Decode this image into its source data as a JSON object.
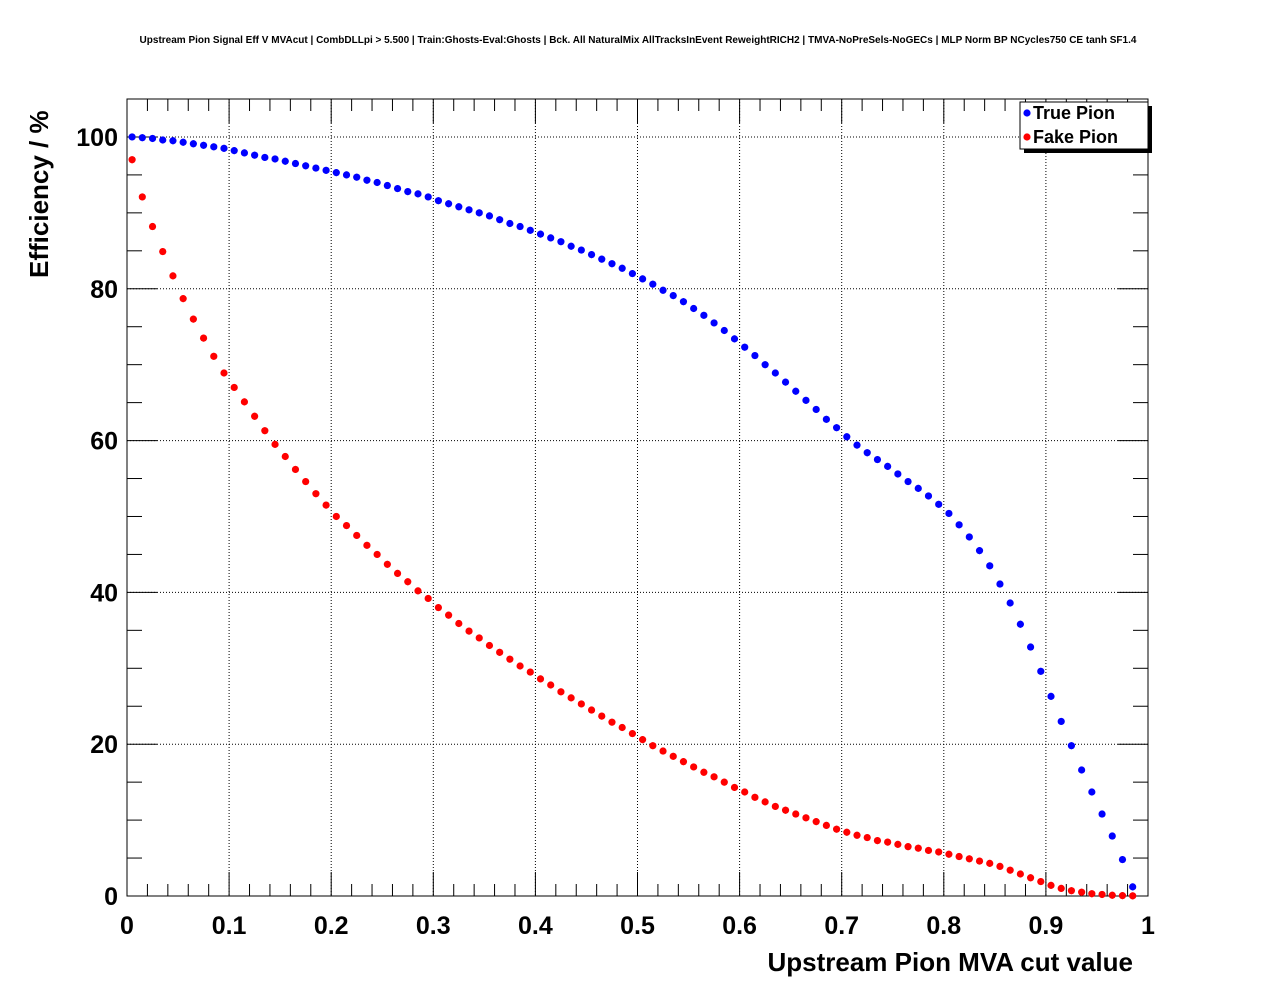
{
  "chart_data": {
    "type": "scatter",
    "title": "Upstream Pion Signal Eff V MVAcut | CombDLLpi > 5.500 | Train:Ghosts-Eval:Ghosts | Bck. All NaturalMix AllTracksInEvent ReweightRICH2 | TMVA-NoPreSels-NoGECs | MLP Norm BP NCycles750 CE tanh SF1.4",
    "xlabel": "Upstream Pion MVA cut value",
    "ylabel": "Efficiency / %",
    "xlim": [
      0,
      1
    ],
    "ylim": [
      0,
      105
    ],
    "xticks": [
      0,
      0.1,
      0.2,
      0.3,
      0.4,
      0.5,
      0.6,
      0.7,
      0.8,
      0.9,
      1
    ],
    "xtick_labels": [
      "0",
      "0.1",
      "0.2",
      "0.3",
      "0.4",
      "0.5",
      "0.6",
      "0.7",
      "0.8",
      "0.9",
      "1"
    ],
    "yticks": [
      0,
      20,
      40,
      60,
      80,
      100
    ],
    "ytick_labels": [
      "0",
      "20",
      "40",
      "60",
      "80",
      "100"
    ],
    "grid": true,
    "legend_position": "top-right",
    "series": [
      {
        "name": "True Pion",
        "color": "#0000ff",
        "x": [
          0.005,
          0.015,
          0.025,
          0.035,
          0.045,
          0.055,
          0.065,
          0.075,
          0.085,
          0.095,
          0.105,
          0.115,
          0.125,
          0.135,
          0.145,
          0.155,
          0.165,
          0.175,
          0.185,
          0.195,
          0.205,
          0.215,
          0.225,
          0.235,
          0.245,
          0.255,
          0.265,
          0.275,
          0.285,
          0.295,
          0.305,
          0.315,
          0.325,
          0.335,
          0.345,
          0.355,
          0.365,
          0.375,
          0.385,
          0.395,
          0.405,
          0.415,
          0.425,
          0.435,
          0.445,
          0.455,
          0.465,
          0.475,
          0.485,
          0.495,
          0.505,
          0.515,
          0.525,
          0.535,
          0.545,
          0.555,
          0.565,
          0.575,
          0.585,
          0.595,
          0.605,
          0.615,
          0.625,
          0.635,
          0.645,
          0.655,
          0.665,
          0.675,
          0.685,
          0.695,
          0.705,
          0.715,
          0.725,
          0.735,
          0.745,
          0.755,
          0.765,
          0.775,
          0.785,
          0.795,
          0.805,
          0.815,
          0.825,
          0.835,
          0.845,
          0.855,
          0.865,
          0.875,
          0.885,
          0.895,
          0.905,
          0.915,
          0.925,
          0.935,
          0.945,
          0.955,
          0.965,
          0.975,
          0.985
        ],
        "y": [
          100.0,
          99.9,
          99.8,
          99.6,
          99.5,
          99.3,
          99.1,
          98.9,
          98.7,
          98.5,
          98.2,
          97.9,
          97.6,
          97.3,
          97.1,
          96.8,
          96.5,
          96.2,
          95.9,
          95.6,
          95.3,
          95.0,
          94.7,
          94.3,
          94.0,
          93.6,
          93.2,
          92.8,
          92.5,
          92.1,
          91.6,
          91.2,
          90.8,
          90.4,
          90.0,
          89.6,
          89.1,
          88.6,
          88.2,
          87.7,
          87.2,
          86.7,
          86.2,
          85.6,
          85.1,
          84.5,
          83.9,
          83.3,
          82.7,
          82.0,
          81.3,
          80.6,
          79.8,
          79.1,
          78.3,
          77.4,
          76.5,
          75.5,
          74.5,
          73.4,
          72.3,
          71.2,
          70.0,
          68.9,
          67.7,
          66.5,
          65.3,
          64.1,
          62.8,
          61.7,
          60.5,
          59.4,
          58.4,
          57.5,
          56.6,
          55.6,
          54.6,
          53.7,
          52.7,
          51.6,
          50.4,
          48.9,
          47.3,
          45.5,
          43.5,
          41.1,
          38.6,
          35.8,
          32.8,
          29.6,
          26.3,
          23.0,
          19.8,
          16.6,
          13.7,
          10.8,
          7.9,
          4.8,
          1.2
        ]
      },
      {
        "name": "Fake Pion",
        "color": "#ff0000",
        "x": [
          0.005,
          0.015,
          0.025,
          0.035,
          0.045,
          0.055,
          0.065,
          0.075,
          0.085,
          0.095,
          0.105,
          0.115,
          0.125,
          0.135,
          0.145,
          0.155,
          0.165,
          0.175,
          0.185,
          0.195,
          0.205,
          0.215,
          0.225,
          0.235,
          0.245,
          0.255,
          0.265,
          0.275,
          0.285,
          0.295,
          0.305,
          0.315,
          0.325,
          0.335,
          0.345,
          0.355,
          0.365,
          0.375,
          0.385,
          0.395,
          0.405,
          0.415,
          0.425,
          0.435,
          0.445,
          0.455,
          0.465,
          0.475,
          0.485,
          0.495,
          0.505,
          0.515,
          0.525,
          0.535,
          0.545,
          0.555,
          0.565,
          0.575,
          0.585,
          0.595,
          0.605,
          0.615,
          0.625,
          0.635,
          0.645,
          0.655,
          0.665,
          0.675,
          0.685,
          0.695,
          0.705,
          0.715,
          0.725,
          0.735,
          0.745,
          0.755,
          0.765,
          0.775,
          0.785,
          0.795,
          0.805,
          0.815,
          0.825,
          0.835,
          0.845,
          0.855,
          0.865,
          0.875,
          0.885,
          0.895,
          0.905,
          0.915,
          0.925,
          0.935,
          0.945,
          0.955,
          0.965,
          0.975,
          0.985
        ],
        "y": [
          97.0,
          92.1,
          88.2,
          84.9,
          81.7,
          78.7,
          76.0,
          73.5,
          71.1,
          68.9,
          67.0,
          65.1,
          63.2,
          61.3,
          59.5,
          57.9,
          56.2,
          54.6,
          53.0,
          51.5,
          50.0,
          48.8,
          47.5,
          46.2,
          45.0,
          43.7,
          42.5,
          41.4,
          40.2,
          39.2,
          38.0,
          37.0,
          35.9,
          34.9,
          34.0,
          33.0,
          32.1,
          31.2,
          30.3,
          29.5,
          28.6,
          27.8,
          26.9,
          26.1,
          25.3,
          24.5,
          23.7,
          22.9,
          22.2,
          21.4,
          20.6,
          19.8,
          19.1,
          18.4,
          17.7,
          17.0,
          16.3,
          15.7,
          15.0,
          14.3,
          13.7,
          13.0,
          12.4,
          11.8,
          11.3,
          10.8,
          10.3,
          9.8,
          9.3,
          8.8,
          8.4,
          8.0,
          7.7,
          7.3,
          7.1,
          6.8,
          6.5,
          6.3,
          6.0,
          5.8,
          5.5,
          5.2,
          4.9,
          4.6,
          4.3,
          3.9,
          3.4,
          2.9,
          2.4,
          1.9,
          1.4,
          1.0,
          0.7,
          0.5,
          0.3,
          0.2,
          0.1,
          0.05,
          0.02
        ]
      }
    ]
  }
}
